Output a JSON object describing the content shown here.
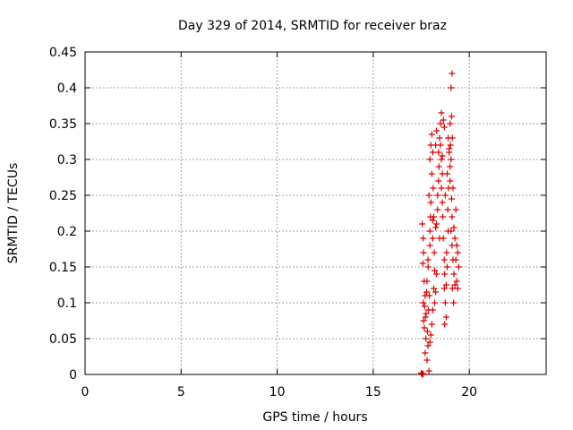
{
  "chart_data": {
    "type": "scatter",
    "title": "Day 329 of 2014, SRMTID for receiver braz",
    "xlabel": "GPS time / hours",
    "ylabel": "SRMTID / TECUs",
    "xlim": [
      0,
      24
    ],
    "ylim": [
      0,
      0.45
    ],
    "xticks": [
      0,
      5,
      10,
      15,
      20
    ],
    "yticks": [
      0,
      0.05,
      0.1,
      0.15,
      0.2,
      0.25,
      0.3,
      0.35,
      0.4,
      0.45
    ],
    "ytick_labels": [
      "0",
      "0.05",
      "0.1",
      "0.15",
      "0.2",
      "0.25",
      "0.3",
      "0.35",
      "0.4",
      "0.45"
    ],
    "grid": true,
    "marker": "+",
    "colors": {
      "series": "#dd0000",
      "grid": "#a0a0a0",
      "axis": "#000000"
    },
    "series": [
      {
        "name": "braz",
        "points": [
          [
            17.5,
            0.002
          ],
          [
            17.53,
            0.001
          ],
          [
            17.56,
            0.0
          ],
          [
            17.6,
            0.001
          ],
          [
            17.55,
            0.21
          ],
          [
            17.6,
            0.19
          ],
          [
            17.62,
            0.17
          ],
          [
            17.58,
            0.155
          ],
          [
            17.65,
            0.13
          ],
          [
            17.7,
            0.11
          ],
          [
            17.68,
            0.095
          ],
          [
            17.72,
            0.08
          ],
          [
            17.66,
            0.065
          ],
          [
            17.74,
            0.05
          ],
          [
            17.7,
            0.03
          ],
          [
            17.8,
            0.02
          ],
          [
            17.85,
            0.04
          ],
          [
            17.9,
            0.005
          ],
          [
            17.82,
            0.06
          ],
          [
            17.88,
            0.09
          ],
          [
            17.92,
            0.11
          ],
          [
            17.8,
            0.13
          ],
          [
            17.86,
            0.15
          ],
          [
            17.95,
            0.18
          ],
          [
            17.98,
            0.22
          ],
          [
            18.0,
            0.24
          ],
          [
            17.9,
            0.25
          ],
          [
            17.95,
            0.3
          ],
          [
            18.0,
            0.32
          ],
          [
            18.05,
            0.335
          ],
          [
            18.1,
            0.31
          ],
          [
            18.05,
            0.28
          ],
          [
            18.12,
            0.26
          ],
          [
            18.15,
            0.22
          ],
          [
            18.1,
            0.19
          ],
          [
            18.18,
            0.17
          ],
          [
            18.2,
            0.145
          ],
          [
            18.15,
            0.12
          ],
          [
            18.1,
            0.09
          ],
          [
            18.05,
            0.07
          ],
          [
            18.2,
            0.1
          ],
          [
            18.25,
            0.115
          ],
          [
            18.3,
            0.14
          ],
          [
            18.3,
            0.21
          ],
          [
            18.35,
            0.25
          ],
          [
            18.4,
            0.27
          ],
          [
            18.42,
            0.29
          ],
          [
            18.4,
            0.31
          ],
          [
            18.45,
            0.33
          ],
          [
            18.5,
            0.35
          ],
          [
            18.55,
            0.365
          ],
          [
            18.5,
            0.32
          ],
          [
            18.55,
            0.3
          ],
          [
            18.6,
            0.28
          ],
          [
            18.55,
            0.26
          ],
          [
            18.6,
            0.24
          ],
          [
            18.62,
            0.22
          ],
          [
            18.65,
            0.19
          ],
          [
            18.7,
            0.16
          ],
          [
            18.72,
            0.14
          ],
          [
            18.7,
            0.12
          ],
          [
            18.75,
            0.1
          ],
          [
            18.8,
            0.08
          ],
          [
            18.72,
            0.07
          ],
          [
            18.8,
            0.125
          ],
          [
            18.85,
            0.15
          ],
          [
            18.82,
            0.17
          ],
          [
            18.9,
            0.2
          ],
          [
            18.88,
            0.23
          ],
          [
            18.92,
            0.26
          ],
          [
            18.85,
            0.28
          ],
          [
            18.95,
            0.31
          ],
          [
            18.9,
            0.33
          ],
          [
            19.0,
            0.35
          ],
          [
            19.02,
            0.32
          ],
          [
            19.05,
            0.3
          ],
          [
            19.0,
            0.27
          ],
          [
            19.08,
            0.245
          ],
          [
            19.1,
            0.22
          ],
          [
            19.05,
            0.2
          ],
          [
            19.1,
            0.18
          ],
          [
            19.15,
            0.16
          ],
          [
            19.2,
            0.14
          ],
          [
            19.12,
            0.12
          ],
          [
            19.18,
            0.1
          ],
          [
            19.25,
            0.125
          ],
          [
            19.3,
            0.16
          ],
          [
            19.35,
            0.18
          ],
          [
            19.4,
            0.17
          ],
          [
            19.45,
            0.15
          ],
          [
            19.35,
            0.13
          ],
          [
            19.4,
            0.12
          ],
          [
            19.05,
            0.4
          ],
          [
            19.1,
            0.42
          ],
          [
            19.08,
            0.36
          ],
          [
            19.12,
            0.33
          ],
          [
            17.95,
            0.045
          ],
          [
            18.0,
            0.055
          ],
          [
            17.75,
            0.085
          ],
          [
            17.6,
            0.1
          ],
          [
            17.62,
            0.075
          ],
          [
            17.78,
            0.115
          ],
          [
            18.25,
            0.205
          ],
          [
            18.35,
            0.23
          ],
          [
            18.6,
            0.305
          ],
          [
            18.75,
            0.25
          ],
          [
            19.2,
            0.205
          ],
          [
            19.25,
            0.19
          ],
          [
            19.3,
            0.23
          ],
          [
            19.15,
            0.26
          ],
          [
            19.0,
            0.29
          ],
          [
            18.95,
            0.315
          ],
          [
            18.7,
            0.345
          ],
          [
            18.65,
            0.355
          ],
          [
            18.3,
            0.34
          ],
          [
            18.25,
            0.32
          ],
          [
            18.1,
            0.215
          ],
          [
            17.95,
            0.2
          ],
          [
            17.85,
            0.16
          ],
          [
            18.45,
            0.19
          ]
        ]
      }
    ]
  }
}
